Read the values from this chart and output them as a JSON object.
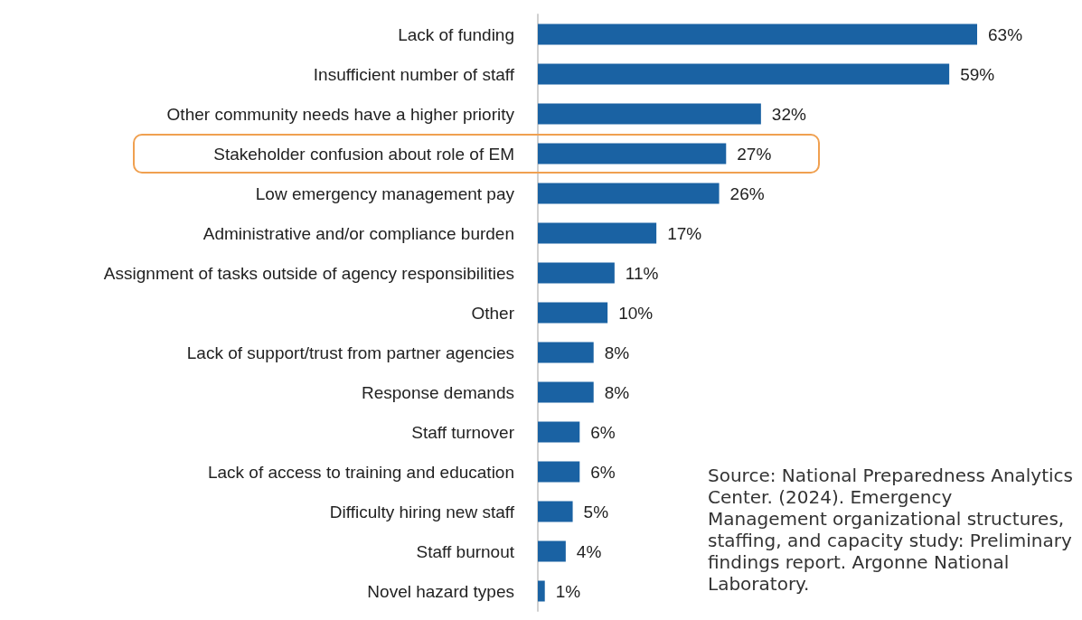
{
  "chart_data": {
    "type": "bar",
    "orientation": "horizontal",
    "grid": false,
    "color": "#1a62a3",
    "value_labels": [
      "63%",
      "59%",
      "32%",
      "27%",
      "26%",
      "17%",
      "11%",
      "10%",
      "8%",
      "8%",
      "6%",
      "6%",
      "5%",
      "4%",
      "1%"
    ],
    "categories": [
      "Lack of funding",
      "Insufficient number of staff",
      "Other community needs have a higher priority",
      "Stakeholder confusion about role of EM",
      "Low emergency management pay",
      "Administrative and/or compliance burden",
      "Assignment of tasks outside of agency responsibilities",
      "Other",
      "Lack of support/trust from partner agencies",
      "Response demands",
      "Staff turnover",
      "Lack of access to training and education",
      "Difficulty hiring new staff",
      "Staff burnout",
      "Novel hazard types"
    ],
    "values": [
      63,
      59,
      32,
      27,
      26,
      17,
      11,
      10,
      8,
      8,
      6,
      6,
      5,
      4,
      1
    ],
    "annotations": [
      "Source: National Preparedness Analytics Center. (2024). Emergency Management organizational structures, staffing, and capacity study: Preliminary findings report. Argonne National Laboratory."
    ]
  }
}
